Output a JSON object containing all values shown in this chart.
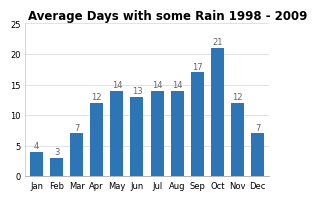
{
  "title": "Average Days with some Rain 1998 - 2009",
  "categories": [
    "Jan",
    "Feb",
    "Mar",
    "Apr",
    "May",
    "Jun",
    "Jul",
    "Aug",
    "Sep",
    "Oct",
    "Nov",
    "Dec"
  ],
  "values": [
    4,
    3,
    7,
    12,
    14,
    13,
    14,
    14,
    17,
    21,
    12,
    7
  ],
  "bar_color": "#2E75B6",
  "ylim": [
    0,
    25
  ],
  "yticks": [
    0,
    5,
    10,
    15,
    20,
    25
  ],
  "background_color": "#ffffff",
  "title_fontsize": 8.5,
  "label_fontsize": 6,
  "tick_fontsize": 6
}
